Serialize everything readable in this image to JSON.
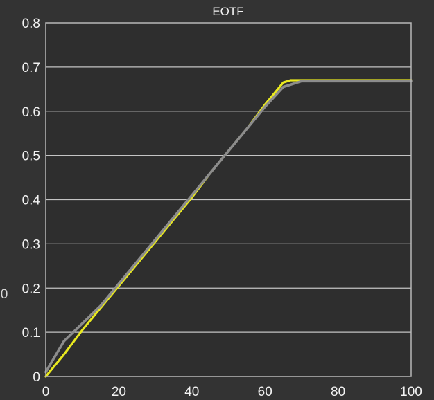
{
  "chart_data": {
    "type": "line",
    "title": "EOTF",
    "xlabel": "",
    "ylabel": "",
    "xlim": [
      0,
      100
    ],
    "ylim": [
      0,
      0.8
    ],
    "x_ticks": [
      0,
      20,
      40,
      60,
      80,
      100
    ],
    "x_tick_labels": [
      "0",
      "20",
      "40",
      "60",
      "80",
      "100"
    ],
    "y_ticks": [
      0,
      0.1,
      0.2,
      0.3,
      0.4,
      0.5,
      0.6,
      0.7,
      0.8
    ],
    "y_tick_labels": [
      "0",
      "0.1",
      "0.2",
      "0.3",
      "0.4",
      "0.5",
      "0.6",
      "0.7",
      "0.8"
    ],
    "grid": true,
    "legend": "none",
    "left_edge_fragment": "0",
    "series": [
      {
        "color": "#e9e91f",
        "x": [
          0,
          5,
          10,
          15,
          20,
          25,
          30,
          35,
          40,
          45,
          50,
          55,
          60,
          65,
          67,
          70,
          80,
          90,
          100
        ],
        "y": [
          0,
          0.05,
          0.105,
          0.155,
          0.205,
          0.255,
          0.305,
          0.355,
          0.405,
          0.46,
          0.51,
          0.56,
          0.615,
          0.665,
          0.67,
          0.67,
          0.67,
          0.67,
          0.67
        ]
      },
      {
        "color": "#8c8c8c",
        "x": [
          0,
          5,
          10,
          15,
          20,
          25,
          30,
          35,
          40,
          45,
          50,
          55,
          60,
          65,
          70,
          80,
          90,
          100
        ],
        "y": [
          0.01,
          0.08,
          0.12,
          0.16,
          0.21,
          0.26,
          0.31,
          0.36,
          0.41,
          0.46,
          0.51,
          0.56,
          0.61,
          0.655,
          0.668,
          0.668,
          0.668,
          0.668
        ]
      }
    ]
  }
}
